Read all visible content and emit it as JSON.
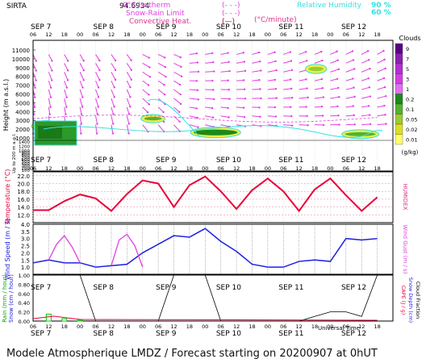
{
  "header": {
    "site": "SIRTA",
    "coords": "94.6934",
    "legend_labels": [
      "0°C Isotherm",
      "Snow-Rain Limit",
      "Convective Heat."
    ],
    "legend_markers": [
      "(- - -)",
      "(- - -)",
      "(—)"
    ],
    "unit": "(°C/minute)",
    "rh_label": "Relative Humidity",
    "rh_values": [
      "90 %",
      "60 %"
    ]
  },
  "dates": [
    "SEP 7",
    "SEP 8",
    "SEP 9",
    "SEP 10",
    "SEP 11",
    "SEP 12"
  ],
  "hours": [
    "06",
    "12",
    "18",
    "00"
  ],
  "colors": {
    "magenta": "#e040e0",
    "cyan": "#36e0e0",
    "temperature": "#e8003a",
    "wind": "#2020e0",
    "grid": "#c8c8c8"
  },
  "labels": {
    "height": "Height (m a.s.l.)",
    "upto": "Up to 200 m a.g.l.",
    "clouds": "Clouds",
    "cloud_unit": "(g/kg)",
    "temperature": "Temperature (°C)",
    "humidex": "HUMIDEX",
    "wind_speed": "Wind Speed (m / s)",
    "wind_gust": "Wind Gust (m / s)",
    "rain": "Rain (mm / hour)",
    "snow": "Snow (cm / hour)",
    "cape": "CAPE (J / g)",
    "snow_depth": "Snow Depth (cm)",
    "cloud_fraction": "Cloud Fraction",
    "universal_time": "Universal Time",
    "footer": "Modele Atmospherique LMDZ / Forecast starting on 20200907 at 0hUT"
  },
  "chart_data": [
    {
      "type": "heatmap",
      "title": "Height / clouds / wind",
      "ylabel": "Height (m a.s.l.)",
      "y_ticks": [
        1000,
        2000,
        3000,
        4000,
        5000,
        6000,
        7000,
        8000,
        9000,
        10000,
        11000
      ],
      "y_ticks_low": [
        100,
        200,
        300,
        400,
        500,
        600,
        700,
        800,
        900,
        1000,
        1200,
        1400
      ],
      "colorbar": {
        "label": "Clouds",
        "unit": "(g/kg)",
        "ticks": [
          "9",
          "7",
          "5",
          "3",
          "1",
          "0.2",
          "0.1",
          "0.05",
          "0.02",
          "0.01"
        ],
        "colors": [
          "#5a0080",
          "#8a20b0",
          "#b030d0",
          "#d040e0",
          "#e070f0",
          "#1a8a1a",
          "#55b030",
          "#99cc33",
          "#dddd22",
          "#ffff66"
        ]
      },
      "cloud_patches": [
        {
          "x": 0,
          "y": 2000,
          "w": 10,
          "h": 700,
          "level": "0.2"
        },
        {
          "x": 42,
          "y": 3000,
          "w": 8,
          "h": 400,
          "level": "0.1"
        },
        {
          "x": 61,
          "y": 1300,
          "w": 18,
          "h": 650,
          "level": "0.2"
        },
        {
          "x": 105,
          "y": 8600,
          "w": 7,
          "h": 500,
          "level": "0.05"
        },
        {
          "x": 119,
          "y": 1200,
          "w": 13,
          "h": 450,
          "level": "0.1"
        }
      ]
    },
    {
      "type": "line",
      "ylabel": "Temperature (°C)",
      "y2label": "HUMIDEX",
      "ylim": [
        10,
        23
      ],
      "y_ticks": [
        12.0,
        14.0,
        16.0,
        18.0,
        20.0,
        22.0
      ],
      "x_hours": [
        0,
        6,
        12,
        18,
        24,
        30,
        36,
        42,
        48,
        54,
        60,
        66,
        72,
        78,
        84,
        90,
        96,
        102,
        108,
        114,
        120,
        126,
        132
      ],
      "series": [
        {
          "values": [
            13.2,
            13.2,
            15.5,
            17.2,
            16.2,
            13.0,
            17.3,
            20.8,
            20.0,
            14.0,
            19.6,
            21.8,
            18.0,
            13.5,
            18.3,
            21.3,
            18.0,
            13.0,
            18.5,
            21.3,
            17.0,
            13.0,
            16.5
          ]
        }
      ]
    },
    {
      "type": "line",
      "ylabel": "Wind Speed (m / s)",
      "y2label": "Wind Gust (m / s)",
      "ylim": [
        0.5,
        4.0
      ],
      "y_ticks": [
        1.0,
        1.5,
        2.0,
        2.5,
        3.0,
        3.5,
        4.0
      ],
      "x_hours": [
        0,
        6,
        12,
        18,
        24,
        30,
        36,
        42,
        48,
        54,
        60,
        66,
        72,
        78,
        84,
        90,
        96,
        102,
        108,
        114,
        120,
        126,
        132
      ],
      "series": [
        {
          "values": [
            1.3,
            1.5,
            1.3,
            1.3,
            1.0,
            1.1,
            1.2,
            2.0,
            2.6,
            3.2,
            3.1,
            3.7,
            2.8,
            2.1,
            1.2,
            1.0,
            1.0,
            1.4,
            1.5,
            1.4,
            3.0,
            2.9,
            3.0
          ]
        },
        {
          "values": [
            null,
            2.0,
            3.2,
            null,
            null,
            null,
            3.3,
            null,
            null,
            null,
            null,
            null,
            null,
            null,
            null,
            null,
            null,
            null,
            null,
            null,
            null,
            null,
            null
          ]
        }
      ]
    },
    {
      "type": "bar",
      "ylabel": "Rain (mm / hour)",
      "y2label": "CAPE (J / g)",
      "ylim": [
        0,
        10
      ],
      "y_ticks": [
        0.0,
        0.2,
        0.4,
        0.6,
        0.8,
        1.0
      ],
      "x_hours": [
        0,
        6,
        12,
        18,
        24,
        30,
        36,
        42,
        48,
        54,
        60,
        66,
        72,
        78,
        84,
        90,
        96,
        102,
        108,
        114,
        120,
        126,
        132
      ],
      "series": [
        {
          "values": [
            0,
            0.15,
            0.05,
            0.02,
            0,
            0,
            0,
            0,
            0,
            0,
            0,
            0,
            0,
            0,
            0,
            0,
            0,
            0,
            0,
            0,
            0,
            0,
            0
          ]
        },
        {
          "values": [
            10,
            10,
            10,
            10,
            0,
            0,
            0,
            0,
            0,
            10,
            10,
            10,
            0,
            0,
            0,
            0,
            0,
            0,
            1,
            2,
            2,
            1,
            10
          ]
        }
      ]
    }
  ]
}
